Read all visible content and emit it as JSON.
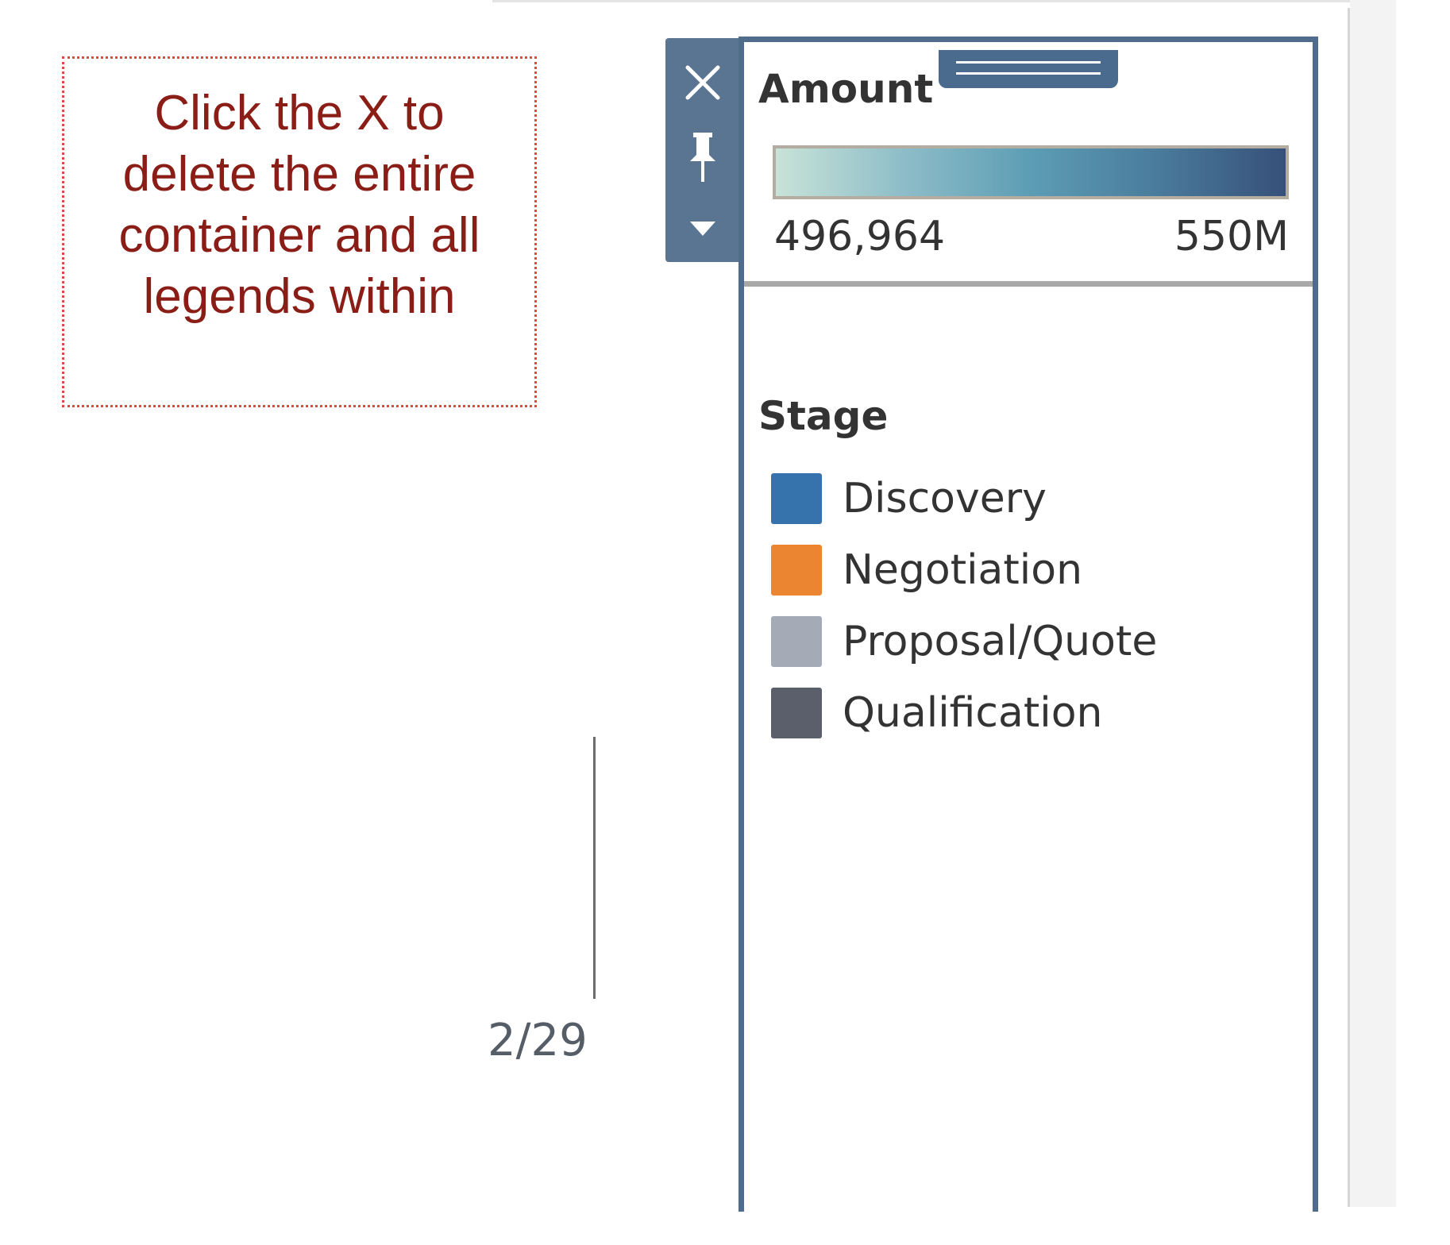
{
  "callout": {
    "text": "Click the X to delete the entire container and all legends within"
  },
  "timeline": {
    "label": "2/29"
  },
  "toolbar": {
    "close_icon": "close-icon",
    "pin_icon": "pin-icon",
    "menu_icon": "dropdown-triangle-icon"
  },
  "amount_legend": {
    "title": "Amount",
    "min_label": "496,964",
    "max_label": "550M",
    "gradient_colors": [
      "#c8e3d8",
      "#8ebdc8",
      "#5c9db4",
      "#4a7b9c",
      "#36507a"
    ]
  },
  "stage_legend": {
    "title": "Stage",
    "items": [
      {
        "label": "Discovery",
        "color": "#3672ac"
      },
      {
        "label": "Negotiation",
        "color": "#ec8531"
      },
      {
        "label": "Proposal/Quote",
        "color": "#a5abb6"
      },
      {
        "label": "Qualification",
        "color": "#5b5f6b"
      }
    ]
  },
  "colors": {
    "container_border": "#4f6c8c",
    "toolbar_bg": "#5a7592",
    "callout_text": "#8b1d17",
    "callout_border": "#e0473d"
  }
}
